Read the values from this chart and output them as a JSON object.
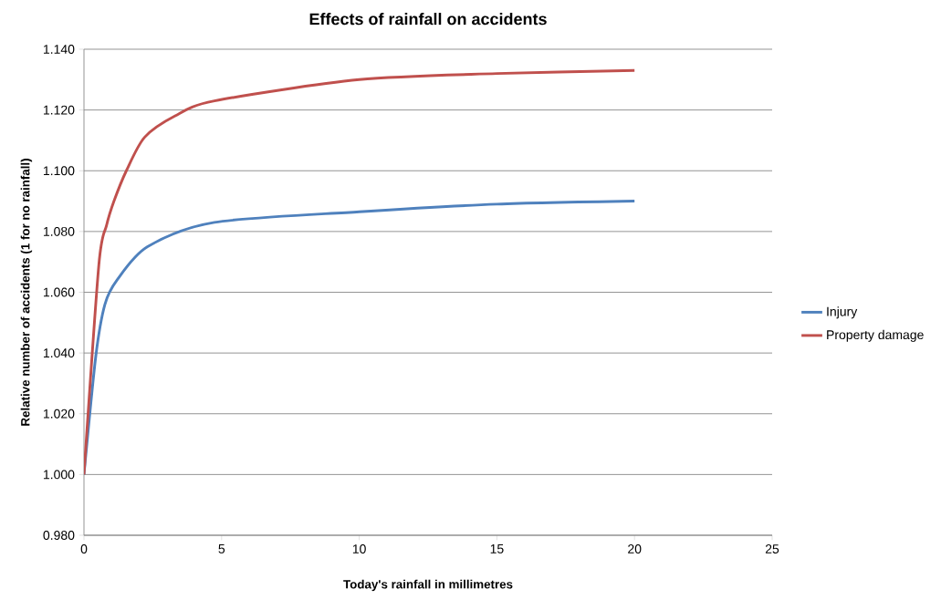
{
  "chart_data": {
    "type": "line",
    "title": "Effects of rainfall on accidents",
    "xlabel": "Today's rainfall in millimetres",
    "ylabel": "Relative number of accidents (1 for no rainfall)",
    "xlim": [
      0,
      25
    ],
    "xticks": [
      0,
      5,
      10,
      15,
      20,
      25
    ],
    "ylim": [
      0.98,
      1.14
    ],
    "yticks": [
      {
        "value": 0.98,
        "label": "0.980"
      },
      {
        "value": 1.0,
        "label": "1.000"
      },
      {
        "value": 1.02,
        "label": "1.020"
      },
      {
        "value": 1.04,
        "label": "1.040"
      },
      {
        "value": 1.06,
        "label": "1.060"
      },
      {
        "value": 1.08,
        "label": "1.080"
      },
      {
        "value": 1.1,
        "label": "1.100"
      },
      {
        "value": 1.12,
        "label": "1.120"
      },
      {
        "value": 1.14,
        "label": "1.140"
      }
    ],
    "grid": "y",
    "legend": "right",
    "marker": "none",
    "series": [
      {
        "name": "Injury",
        "color": "#4f81bd",
        "x": [
          0,
          0.43,
          0.76,
          1.2,
          2.31,
          4.74,
          10,
          15,
          20
        ],
        "values": [
          1.0,
          1.039,
          1.056,
          1.064,
          1.075,
          1.083,
          1.0865,
          1.089,
          1.09
        ]
      },
      {
        "name": "Property damage",
        "color": "#c0504d",
        "x": [
          0,
          0.54,
          0.82,
          1.09,
          1.54,
          2.2,
          3.3,
          4.74,
          10,
          15,
          20
        ],
        "values": [
          1.0,
          1.069,
          1.082,
          1.09,
          1.1,
          1.111,
          1.118,
          1.123,
          1.13,
          1.132,
          1.133
        ]
      }
    ]
  }
}
